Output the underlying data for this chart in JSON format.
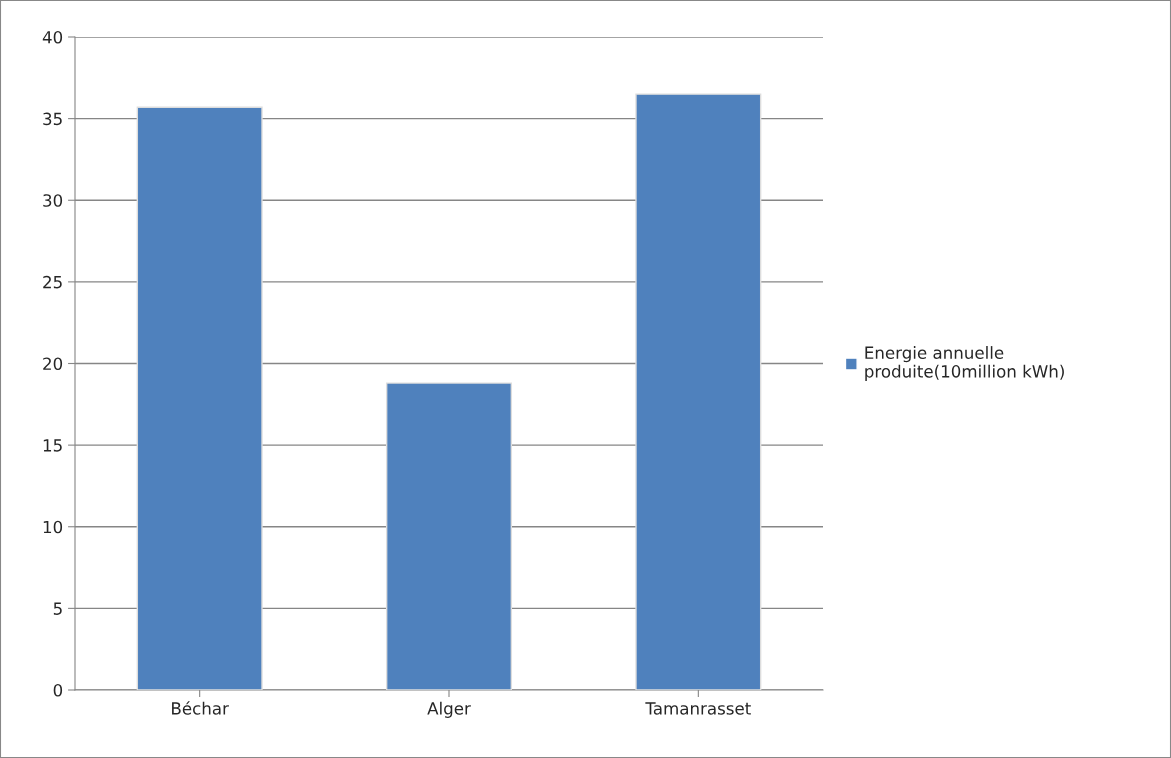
{
  "chart_data": {
    "type": "bar",
    "categories": [
      "Béchar",
      "Alger",
      "Tamanrasset"
    ],
    "series": [
      {
        "name": "Energie annuelle\nproduite(10million kWh)",
        "color": "#4f81bd",
        "values": [
          35.7,
          18.8,
          36.5
        ]
      }
    ],
    "ylim": [
      0,
      40
    ],
    "yticks": [
      0,
      5,
      10,
      15,
      20,
      25,
      30,
      35,
      40
    ],
    "grid": "y",
    "legend": "right"
  }
}
